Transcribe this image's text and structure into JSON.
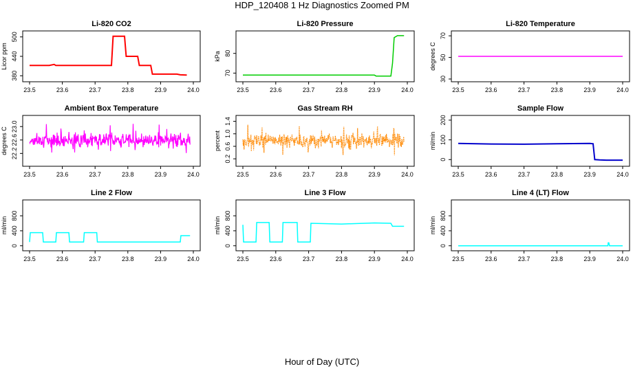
{
  "figure": {
    "title": "HDP_120408  1 Hz Diagnostics Zoomed PM",
    "xlabel": "Hour of Day (UTC)"
  },
  "chart_data": [
    {
      "type": "line",
      "title": "Li-820 CO2",
      "ylabel": "Licor ppm",
      "color": "#ff0000",
      "xlim": [
        23.5,
        24.0
      ],
      "ylim": [
        370,
        510
      ],
      "xticks": [
        "23.5",
        "23.6",
        "23.7",
        "23.8",
        "23.9",
        "24.0"
      ],
      "yticks": [
        "380",
        "440",
        "500"
      ],
      "x": [
        23.5,
        23.56,
        23.575,
        23.58,
        23.6,
        23.65,
        23.7,
        23.75,
        23.755,
        23.79,
        23.795,
        23.83,
        23.835,
        23.87,
        23.875,
        23.95,
        23.96,
        23.98
      ],
      "y": [
        412,
        412,
        415,
        412,
        412,
        412,
        412,
        412,
        502,
        502,
        440,
        440,
        412,
        412,
        385,
        385,
        383,
        382
      ]
    },
    {
      "type": "line",
      "title": "Li-820 Pressure",
      "ylabel": "kPa",
      "color": "#00cc00",
      "xlim": [
        23.5,
        24.0
      ],
      "ylim": [
        67,
        90
      ],
      "xticks": [
        "23.5",
        "23.6",
        "23.7",
        "23.8",
        "23.9",
        "24.0"
      ],
      "yticks": [
        "70",
        "80"
      ],
      "x": [
        23.5,
        23.6,
        23.7,
        23.8,
        23.9,
        23.905,
        23.95,
        23.955,
        23.96,
        23.97,
        23.99
      ],
      "y": [
        69,
        69,
        69,
        69,
        69,
        68.5,
        68.5,
        75,
        88,
        89,
        89
      ]
    },
    {
      "type": "line",
      "title": "Li-820 Temperature",
      "ylabel": "degrees C",
      "color": "#ff00ff",
      "xlim": [
        23.5,
        24.0
      ],
      "ylim": [
        30,
        72
      ],
      "xticks": [
        "23.5",
        "23.6",
        "23.7",
        "23.8",
        "23.9",
        "24.0"
      ],
      "yticks": [
        "30",
        "50",
        "70"
      ],
      "x": [
        23.5,
        24.0
      ],
      "y": [
        51,
        51
      ]
    },
    {
      "type": "line",
      "title": "Ambient Box Temperature",
      "ylabel": "degrees C",
      "color": "#ff00ff",
      "xlim": [
        23.5,
        24.0
      ],
      "ylim": [
        21.9,
        23.25
      ],
      "xticks": [
        "23.5",
        "23.6",
        "23.7",
        "23.8",
        "23.9",
        "24.0"
      ],
      "yticks": [
        "22.2",
        "22.6",
        "23.0"
      ],
      "x": [
        23.5,
        23.99
      ],
      "y": [
        22.5,
        22.5
      ],
      "band": [
        22.1,
        23.1
      ]
    },
    {
      "type": "line",
      "title": "Gas Stream RH",
      "ylabel": "percent",
      "color": "#ff8800",
      "xlim": [
        23.5,
        24.0
      ],
      "ylim": [
        0.05,
        1.5
      ],
      "xticks": [
        "23.5",
        "23.6",
        "23.7",
        "23.8",
        "23.9",
        "24.0"
      ],
      "yticks": [
        "0.2",
        "0.6",
        "1.0",
        "1.4"
      ],
      "x": [
        23.5,
        23.99
      ],
      "y": [
        0.6,
        0.6
      ],
      "band": [
        0.25,
        1.3
      ]
    },
    {
      "type": "line",
      "title": "Sample Flow",
      "ylabel": "ml/min",
      "color": "#0000cc",
      "xlim": [
        23.5,
        24.0
      ],
      "ylim": [
        -20,
        210
      ],
      "xticks": [
        "23.5",
        "23.6",
        "23.7",
        "23.8",
        "23.9",
        "24.0"
      ],
      "yticks": [
        "0",
        "100",
        "200"
      ],
      "x": [
        23.5,
        23.6,
        23.7,
        23.8,
        23.9,
        23.91,
        23.915,
        23.93,
        23.95,
        24.0
      ],
      "y": [
        82,
        79,
        78,
        80,
        82,
        80,
        0,
        -2,
        -3,
        -3
      ]
    },
    {
      "type": "line",
      "title": "Line 2 Flow",
      "ylabel": "ml/min",
      "color": "#00ffff",
      "xlim": [
        23.5,
        24.0
      ],
      "ylim": [
        -60,
        1150
      ],
      "xticks": [
        "23.5",
        "23.6",
        "23.7",
        "23.8",
        "23.9",
        "24.0"
      ],
      "yticks": [
        "0",
        "400",
        "800"
      ],
      "x": [
        23.5,
        23.502,
        23.54,
        23.542,
        23.58,
        23.582,
        23.62,
        23.622,
        23.665,
        23.667,
        23.705,
        23.707,
        23.75,
        23.96,
        23.962,
        23.99
      ],
      "y": [
        100,
        350,
        350,
        100,
        100,
        350,
        350,
        100,
        100,
        350,
        350,
        100,
        100,
        100,
        270,
        270
      ]
    },
    {
      "type": "line",
      "title": "Line 3 Flow",
      "ylabel": "ml/min",
      "color": "#00ffff",
      "xlim": [
        23.5,
        24.0
      ],
      "ylim": [
        -60,
        1150
      ],
      "xticks": [
        "23.5",
        "23.6",
        "23.7",
        "23.8",
        "23.9",
        "24.0"
      ],
      "yticks": [
        "0",
        "400",
        "800"
      ],
      "x": [
        23.5,
        23.502,
        23.54,
        23.542,
        23.58,
        23.582,
        23.62,
        23.622,
        23.665,
        23.667,
        23.705,
        23.707,
        23.8,
        23.9,
        23.95,
        23.955,
        23.99
      ],
      "y": [
        560,
        100,
        100,
        620,
        620,
        100,
        100,
        620,
        620,
        100,
        100,
        600,
        580,
        610,
        600,
        520,
        520
      ]
    },
    {
      "type": "line",
      "title": "Line 4 (LT) Flow",
      "ylabel": "ml/min",
      "color": "#00ffff",
      "xlim": [
        23.5,
        24.0
      ],
      "ylim": [
        -60,
        1150
      ],
      "xticks": [
        "23.5",
        "23.6",
        "23.7",
        "23.8",
        "23.9",
        "24.0"
      ],
      "yticks": [
        "0",
        "400",
        "800"
      ],
      "x": [
        23.5,
        23.955,
        23.956,
        23.958,
        23.96,
        24.0
      ],
      "y": [
        0,
        0,
        80,
        80,
        0,
        0
      ]
    }
  ]
}
